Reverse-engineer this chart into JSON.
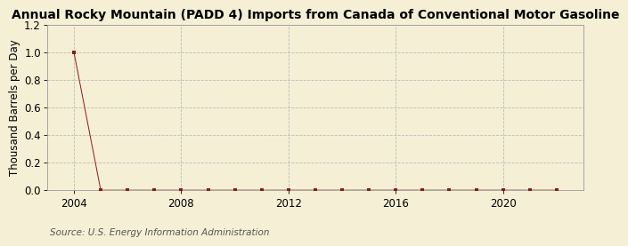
{
  "title": "Annual Rocky Mountain (PADD 4) Imports from Canada of Conventional Motor Gasoline",
  "ylabel": "Thousand Barrels per Day",
  "source_text": "Source: U.S. Energy Information Administration",
  "background_color": "#f5efd5",
  "ylim": [
    0.0,
    1.2
  ],
  "yticks": [
    0.0,
    0.2,
    0.4,
    0.6,
    0.8,
    1.0,
    1.2
  ],
  "xlim": [
    2003.0,
    2023.0
  ],
  "xticks": [
    2004,
    2008,
    2012,
    2016,
    2020
  ],
  "data_x": [
    2004,
    2005,
    2006,
    2007,
    2008,
    2009,
    2010,
    2011,
    2012,
    2013,
    2014,
    2015,
    2016,
    2017,
    2018,
    2019,
    2020,
    2021,
    2022
  ],
  "data_y": [
    1.0,
    0.0,
    0.0,
    0.0,
    0.0,
    0.0,
    0.0,
    0.0,
    0.0,
    0.0,
    0.0,
    0.0,
    0.0,
    0.0,
    0.0,
    0.0,
    0.0,
    0.0,
    0.0
  ],
  "marker_color": "#8b1a1a",
  "line_color": "#8b1a1a",
  "grid_color": "#bbbbbb",
  "title_fontsize": 10,
  "axis_label_fontsize": 8.5,
  "tick_fontsize": 8.5,
  "source_fontsize": 7.5
}
